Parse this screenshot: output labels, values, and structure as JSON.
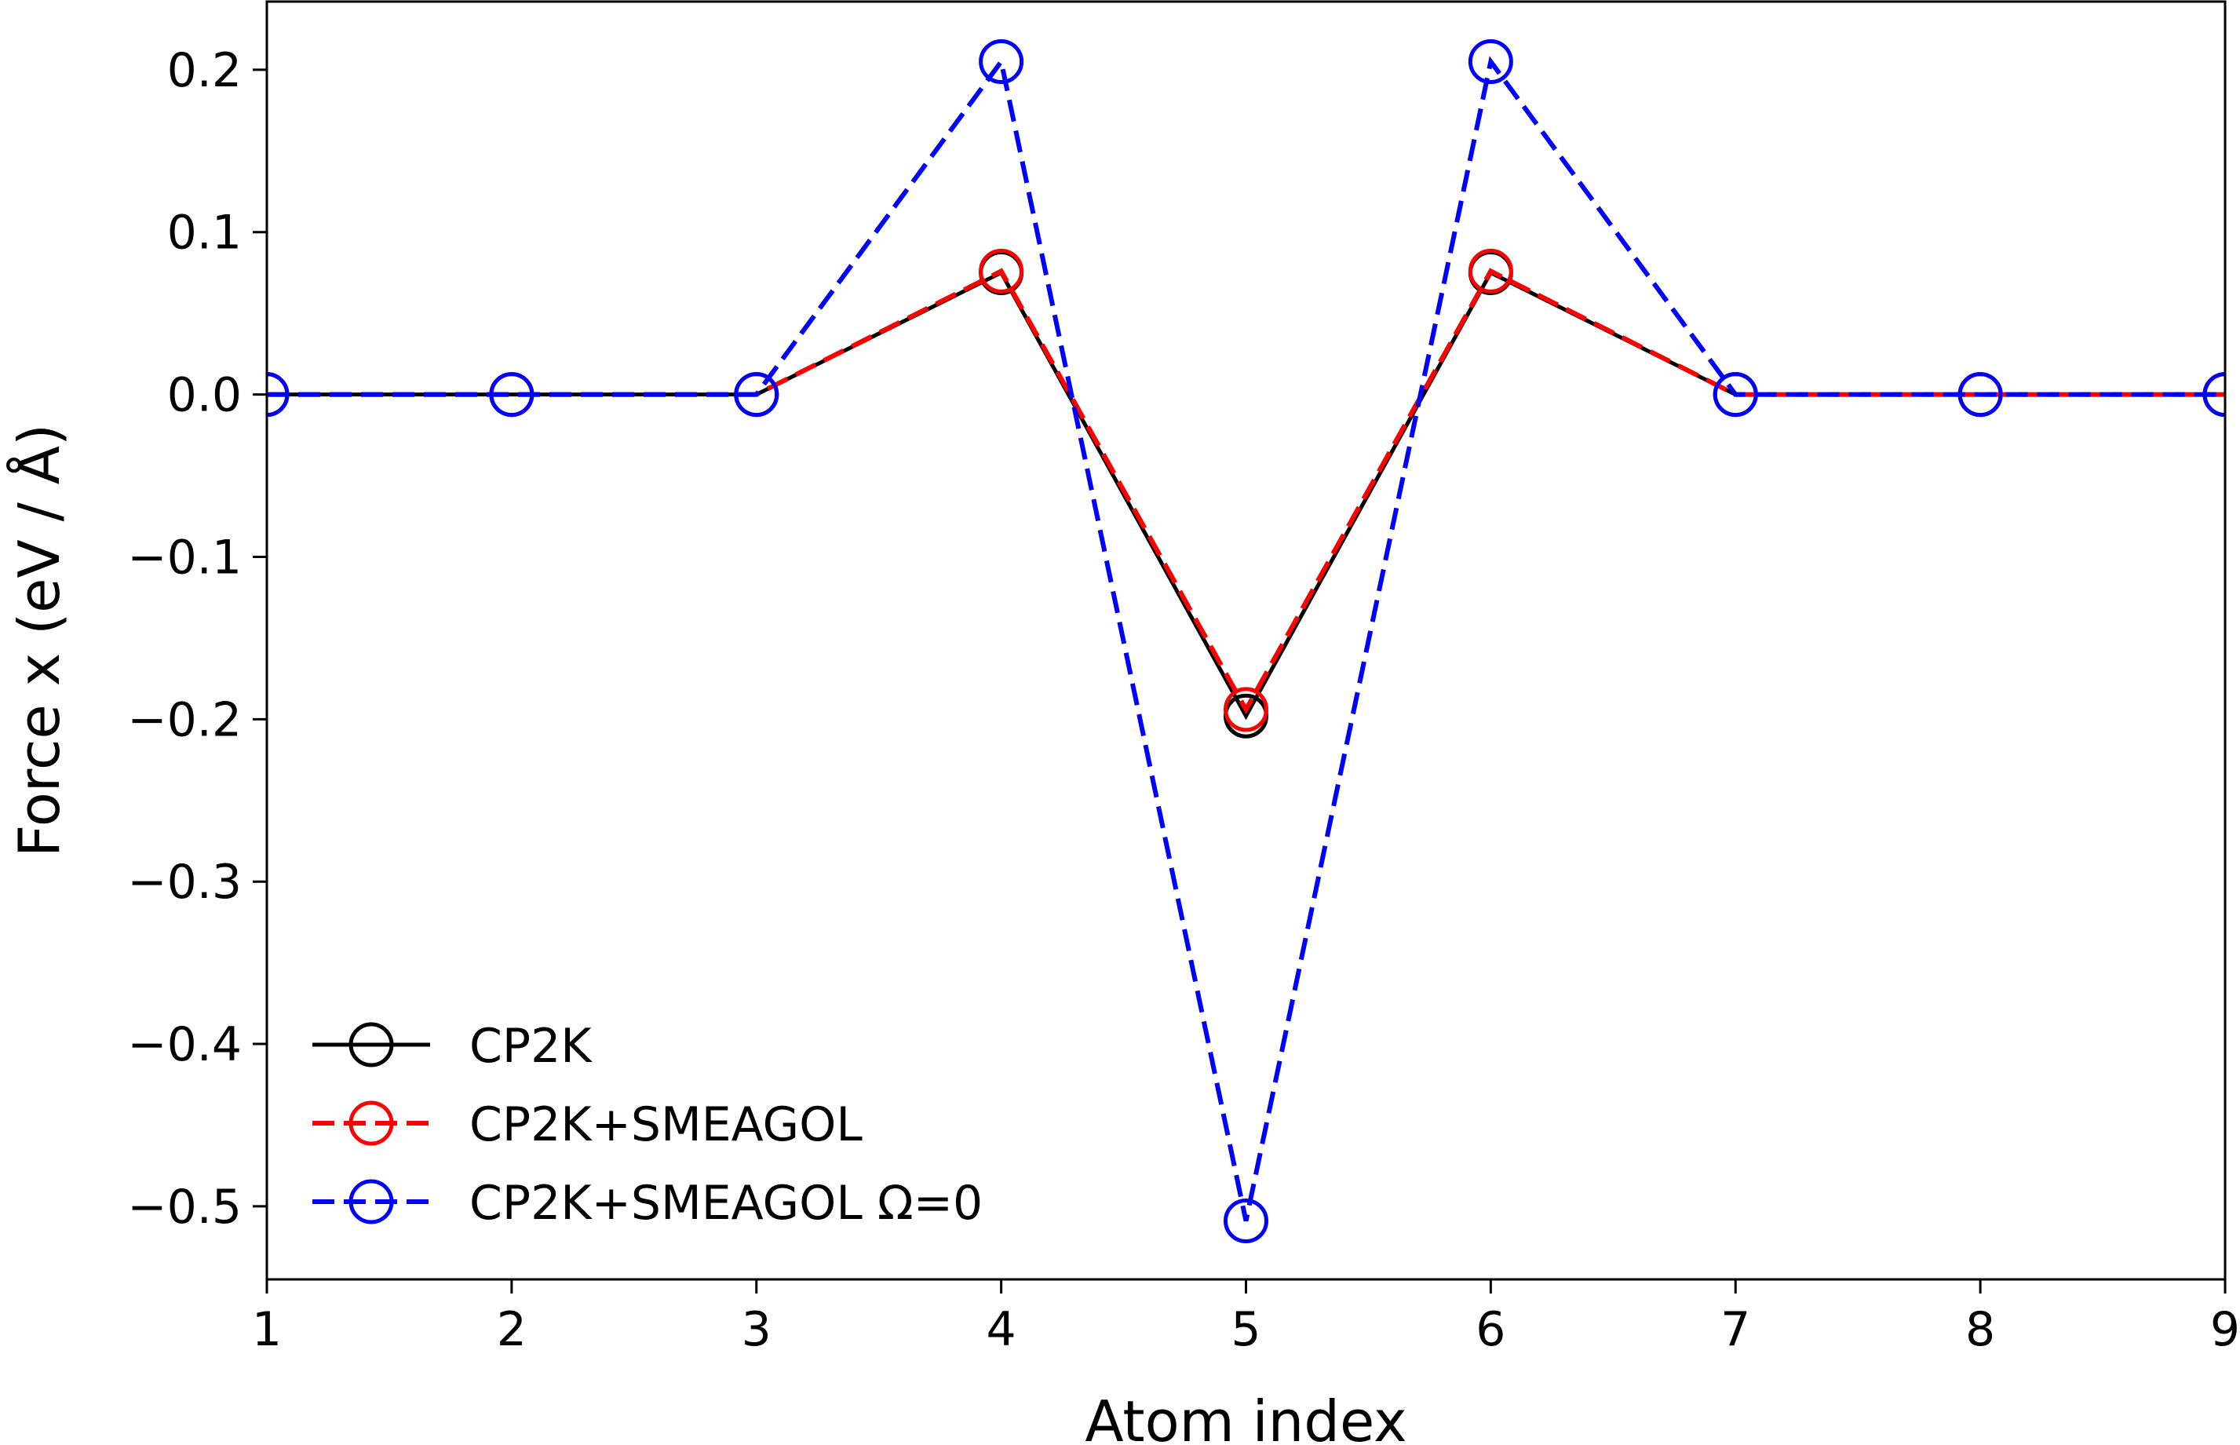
{
  "chart_data": {
    "type": "line",
    "title": "",
    "xlabel": "Atom index",
    "ylabel": "Force x (eV / Å)",
    "xlim": [
      1,
      9
    ],
    "ylim": [
      -0.545,
      0.242
    ],
    "xticks": [
      1,
      2,
      3,
      4,
      5,
      6,
      7,
      8,
      9
    ],
    "xtick_labels": [
      "1",
      "2",
      "3",
      "4",
      "5",
      "6",
      "7",
      "8",
      "9"
    ],
    "yticks": [
      0.2,
      0.1,
      0.0,
      -0.1,
      -0.2,
      -0.3,
      -0.4,
      -0.5
    ],
    "ytick_labels": [
      "0.2",
      "0.1",
      "0.0",
      "−0.1",
      "−0.2",
      "−0.3",
      "−0.4",
      "−0.5"
    ],
    "grid": false,
    "legend_position": "lower-left",
    "x": [
      1,
      2,
      3,
      4,
      5,
      6,
      7,
      8,
      9
    ],
    "series": [
      {
        "name": "CP2K",
        "color": "#000000",
        "line_style": "solid",
        "marker": "open-circle",
        "values": [
          0.0,
          0.0,
          0.0,
          0.075,
          -0.198,
          0.075,
          0.0,
          0.0,
          0.0
        ]
      },
      {
        "name": "CP2K+SMEAGOL",
        "color": "#ff0000",
        "line_style": "dashed",
        "marker": "open-circle",
        "values": [
          0.0,
          0.0,
          0.0,
          0.076,
          -0.194,
          0.076,
          0.0,
          0.0,
          0.0
        ]
      },
      {
        "name": "CP2K+SMEAGOL Ω=0",
        "color": "#0000ff",
        "line_style": "dashed",
        "marker": "open-circle",
        "values": [
          0.0,
          0.0,
          0.0,
          0.205,
          -0.509,
          0.205,
          0.0,
          0.0,
          0.0
        ]
      }
    ]
  }
}
